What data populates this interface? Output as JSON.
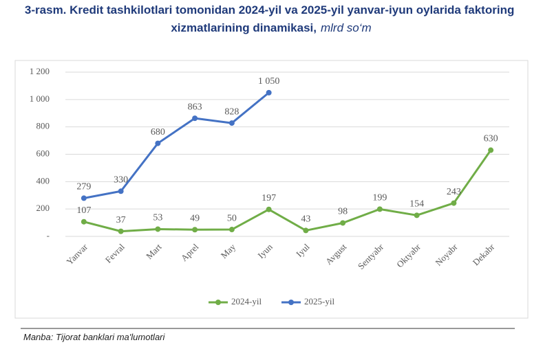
{
  "chart_data": {
    "type": "line",
    "title": "3-rasm. Kredit tashkilotlari tomonidan 2024-yil va 2025-yil yanvar-iyun oylarida faktoring xizmatlarining dinamikasi,",
    "title_unit": "mlrd so‘m",
    "source": "Manba: Tijorat banklari ma'lumotlari",
    "categories": [
      "Yanvar",
      "Fevral",
      "Mart",
      "Aprel",
      "May",
      "Iyun",
      "Iyul",
      "Avgust",
      "Sentyabr",
      "Oktyabr",
      "Noyabr",
      "Dekabr"
    ],
    "series": [
      {
        "name": "2024-yil",
        "color": "#70ad47",
        "values": [
          107,
          37,
          53,
          49,
          50,
          197,
          43,
          98,
          199,
          154,
          243,
          630
        ]
      },
      {
        "name": "2025-yil",
        "color": "#4472c4",
        "values": [
          279,
          330,
          680,
          863,
          828,
          1050,
          null,
          null,
          null,
          null,
          null,
          null
        ],
        "value_labels": [
          "279",
          "330",
          "680",
          "863",
          "828",
          "1 050",
          null,
          null,
          null,
          null,
          null,
          null
        ]
      }
    ],
    "ylim": [
      0,
      1200
    ],
    "yticks": [
      {
        "value": 0,
        "label": "-"
      },
      200,
      400,
      600,
      800,
      {
        "value": 1000,
        "label": "1 000"
      },
      {
        "value": 1200,
        "label": "1 200"
      }
    ],
    "grid": true,
    "legend": "bottom"
  }
}
